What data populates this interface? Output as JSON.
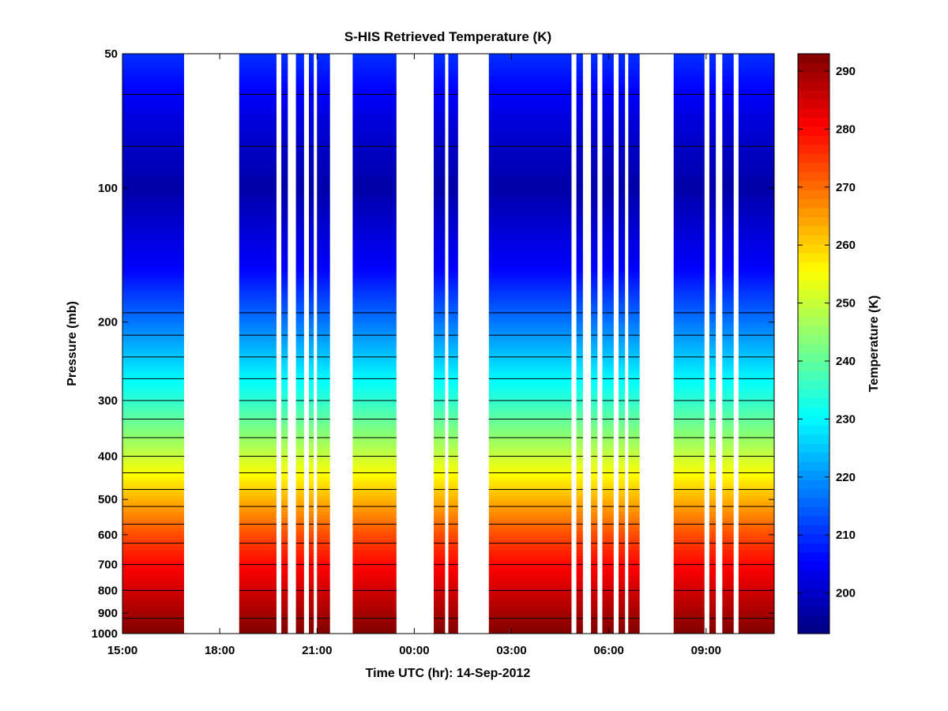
{
  "chart_data": {
    "type": "heatmap",
    "title": "S-HIS Retrieved Temperature (K)",
    "xlabel": "Time UTC (hr): 14-Sep-2012",
    "ylabel": "Pressure (mb)",
    "colorbar_label": "Temperature (K)",
    "x_unit": "hours since 00:00 UTC 14-Sep-2012",
    "xlim": [
      -9.0,
      11.1
    ],
    "x_ticks": [
      {
        "value": -9,
        "label": "15:00"
      },
      {
        "value": -6,
        "label": "18:00"
      },
      {
        "value": -3,
        "label": "21:00"
      },
      {
        "value": 0,
        "label": "00:00"
      },
      {
        "value": 3,
        "label": "03:00"
      },
      {
        "value": 6,
        "label": "06:00"
      },
      {
        "value": 9,
        "label": "09:00"
      }
    ],
    "y_scale": "log",
    "y_reversed": true,
    "ylim": [
      50,
      1000
    ],
    "y_ticks": [
      {
        "value": 50,
        "label": "50"
      },
      {
        "value": 100,
        "label": "100"
      },
      {
        "value": 200,
        "label": "200"
      },
      {
        "value": 300,
        "label": "300"
      },
      {
        "value": 400,
        "label": "400"
      },
      {
        "value": 500,
        "label": "500"
      },
      {
        "value": 600,
        "label": "600"
      },
      {
        "value": 700,
        "label": "700"
      },
      {
        "value": 800,
        "label": "800"
      },
      {
        "value": 900,
        "label": "900"
      },
      {
        "value": 1000,
        "label": "1000"
      }
    ],
    "colorbar": {
      "range": [
        193,
        293
      ],
      "ticks": [
        {
          "value": 200,
          "label": "200"
        },
        {
          "value": 210,
          "label": "210"
        },
        {
          "value": 220,
          "label": "220"
        },
        {
          "value": 230,
          "label": "230"
        },
        {
          "value": 240,
          "label": "240"
        },
        {
          "value": 250,
          "label": "250"
        },
        {
          "value": 260,
          "label": "260"
        },
        {
          "value": 270,
          "label": "270"
        },
        {
          "value": 280,
          "label": "280"
        },
        {
          "value": 290,
          "label": "290"
        }
      ],
      "colormap": "jet"
    },
    "temperature_profile": {
      "pressure": [
        50,
        70,
        100,
        150,
        200,
        300,
        400,
        500,
        600,
        700,
        800,
        900,
        1000
      ],
      "temperature": [
        210,
        202,
        197,
        205,
        217,
        235,
        250,
        263,
        273,
        280,
        285,
        289,
        293
      ]
    },
    "contour_interval_K": 5,
    "data_segments": [
      {
        "start": -9.0,
        "end": -7.1
      },
      {
        "start": -5.4,
        "end": -4.25
      },
      {
        "start": -4.1,
        "end": -3.9
      },
      {
        "start": -3.65,
        "end": -3.4
      },
      {
        "start": -3.25,
        "end": -3.1
      },
      {
        "start": -3.0,
        "end": -2.6
      },
      {
        "start": -1.9,
        "end": -0.55
      },
      {
        "start": 0.6,
        "end": 0.95
      },
      {
        "start": 1.05,
        "end": 1.35
      },
      {
        "start": 2.3,
        "end": 4.85
      },
      {
        "start": 5.0,
        "end": 5.2
      },
      {
        "start": 5.45,
        "end": 5.65
      },
      {
        "start": 5.8,
        "end": 6.15
      },
      {
        "start": 6.3,
        "end": 6.5
      },
      {
        "start": 6.6,
        "end": 6.95
      },
      {
        "start": 8.0,
        "end": 8.95
      },
      {
        "start": 9.1,
        "end": 9.3
      },
      {
        "start": 9.5,
        "end": 9.85
      },
      {
        "start": 10.0,
        "end": 11.1
      }
    ]
  }
}
